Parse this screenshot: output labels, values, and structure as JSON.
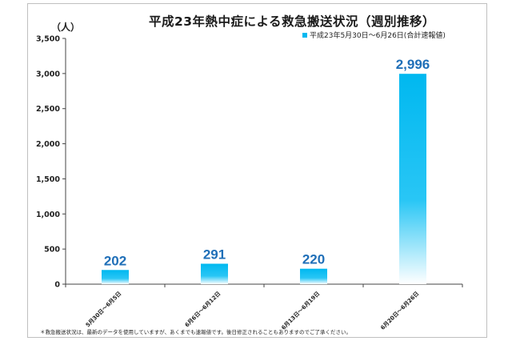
{
  "chart_data": {
    "type": "bar",
    "title": "平成23年熱中症による救急搬送状況（週別推移）",
    "y_unit": "（人）",
    "categories": [
      "5月30日～6月5日",
      "6月6日～6月12日",
      "6月13日～6月19日",
      "6月20日～6月26日"
    ],
    "series": [
      {
        "name": "平成23年5月30日～6月26日(合計速報値)",
        "values": [
          202,
          291,
          220,
          2996
        ]
      }
    ],
    "data_labels": [
      "202",
      "291",
      "220",
      "2,996"
    ],
    "ylim": [
      0,
      3500
    ],
    "yticks": [
      0,
      500,
      1000,
      1500,
      2000,
      2500,
      3000,
      3500
    ],
    "ytick_labels": [
      "0",
      "500",
      "1,000",
      "1,500",
      "2,000",
      "2,500",
      "3,000",
      "3,500"
    ],
    "grid": false,
    "legend_position": "top-right",
    "bar_color": "#00b8f0",
    "label_color": "#1f6fb8"
  },
  "footnote": "＊救急搬送状況は、最新のデータを使用していますが、あくまでも速報値です。後日修正されることもありますのでご了承ください。"
}
